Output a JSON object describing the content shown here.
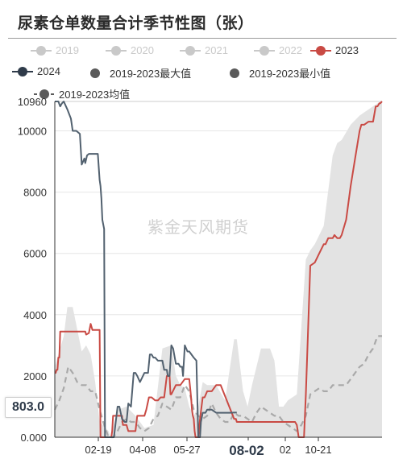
{
  "title": "尿素仓单数量合计季节性图（张）",
  "watermark": "紫金天风期货",
  "legend": [
    {
      "label": "2019",
      "color": "#c9c9c9",
      "style": "circle-line",
      "state": "muted"
    },
    {
      "label": "2020",
      "color": "#c9c9c9",
      "style": "circle-line",
      "state": "muted"
    },
    {
      "label": "2021",
      "color": "#c9c9c9",
      "style": "circle-line",
      "state": "muted"
    },
    {
      "label": "2022",
      "color": "#c9c9c9",
      "style": "circle-line",
      "state": "muted"
    },
    {
      "label": "2023",
      "color": "#c94a44",
      "style": "circle-line",
      "state": "active"
    },
    {
      "label": "2024",
      "color": "#2f3b4a",
      "style": "circle-line",
      "state": "active"
    },
    {
      "label": "2019-2023最大值",
      "color": "#5a5a5a",
      "style": "circle",
      "state": "active"
    },
    {
      "label": "2019-2023最小值",
      "color": "#5a5a5a",
      "style": "circle",
      "state": "active"
    },
    {
      "label": "2019-2023均值",
      "color": "#5a5a5a",
      "style": "circle-dash",
      "state": "active"
    }
  ],
  "y_pointer": "803.0",
  "x_pointer": "08-02",
  "chart_data": {
    "type": "line",
    "title": "尿素仓单数量合计季节性图（张）",
    "ylim": [
      0,
      10960
    ],
    "y_ticks": [
      "0.000",
      "2000",
      "4000",
      "6000",
      "8000",
      "10000",
      "10960"
    ],
    "x_ticks": [
      "02-19",
      "04-08",
      "05-27",
      "08-02",
      "02",
      "10-21"
    ],
    "colors": {
      "y2023": "#c94a44",
      "y2024": "#52616f",
      "band": "#e3e3e3",
      "mean": "#a9a9a9"
    },
    "x_domain": [
      0,
      365
    ],
    "range_band": {
      "name": "2019-2023最大值 / 2019-2023最小值",
      "x": [
        0,
        10,
        14,
        20,
        30,
        35,
        40,
        45,
        50,
        60,
        62,
        70,
        80,
        90,
        100,
        110,
        120,
        130,
        135,
        140,
        145,
        150,
        155,
        160,
        165,
        170,
        180,
        190,
        200,
        203,
        210,
        215,
        220,
        230,
        240,
        245,
        250,
        255,
        260,
        270,
        280,
        285,
        290,
        300,
        310,
        315,
        320,
        330,
        340,
        350,
        360,
        365
      ],
      "max": [
        2300,
        3300,
        4250,
        4250,
        2800,
        3000,
        2700,
        1800,
        500,
        200,
        0,
        900,
        1000,
        700,
        300,
        400,
        2900,
        3000,
        2000,
        1700,
        1600,
        1000,
        700,
        1000,
        1800,
        1700,
        1700,
        1200,
        3200,
        3200,
        1500,
        1000,
        1700,
        2900,
        2900,
        2500,
        1000,
        1000,
        1200,
        1400,
        5800,
        6100,
        6300,
        6900,
        9200,
        9600,
        9700,
        10200,
        10500,
        10700,
        10900,
        10960
      ],
      "min": [
        0,
        0,
        0,
        0,
        0,
        0,
        0,
        0,
        0,
        0,
        0,
        0,
        0,
        0,
        0,
        0,
        0,
        0,
        0,
        0,
        0,
        0,
        0,
        0,
        0,
        0,
        0,
        0,
        0,
        0,
        0,
        0,
        0,
        0,
        0,
        0,
        0,
        0,
        0,
        0,
        0,
        0,
        0,
        0,
        0,
        0,
        0,
        0,
        0,
        0,
        0,
        0
      ]
    },
    "series": [
      {
        "name": "2019-2023均值",
        "style": "dashed",
        "x": [
          0,
          5,
          10,
          15,
          20,
          25,
          30,
          35,
          40,
          45,
          50,
          55,
          60,
          65,
          70,
          75,
          80,
          85,
          90,
          95,
          100,
          105,
          110,
          115,
          120,
          125,
          130,
          135,
          140,
          145,
          150,
          155,
          160,
          165,
          170,
          175,
          180,
          185,
          190,
          195,
          200,
          205,
          210,
          215,
          220,
          225,
          230,
          235,
          240,
          245,
          250,
          255,
          260,
          265,
          270,
          275,
          280,
          285,
          290,
          295,
          300,
          305,
          310,
          315,
          320,
          325,
          330,
          335,
          340,
          345,
          350,
          355,
          360,
          365
        ],
        "values": [
          900,
          1200,
          1600,
          2300,
          2100,
          1800,
          1700,
          1700,
          1500,
          1500,
          900,
          400,
          0,
          0,
          200,
          500,
          600,
          500,
          500,
          300,
          200,
          300,
          600,
          700,
          1100,
          1000,
          900,
          1300,
          1300,
          1700,
          1500,
          900,
          700,
          600,
          700,
          1100,
          800,
          600,
          500,
          500,
          800,
          700,
          700,
          600,
          500,
          800,
          1000,
          900,
          800,
          700,
          700,
          500,
          400,
          300,
          200,
          400,
          700,
          1400,
          1500,
          1600,
          1500,
          1500,
          1700,
          1700,
          1700,
          1700,
          1900,
          2100,
          2300,
          2400,
          2700,
          2900,
          3300,
          3300
        ]
      },
      {
        "name": "2023",
        "style": "solid",
        "x": [
          0,
          1,
          2,
          3,
          4,
          5,
          6,
          30,
          34,
          35,
          38,
          40,
          41,
          42,
          50,
          51,
          55,
          60,
          62,
          63,
          64,
          65,
          66,
          75,
          76,
          80,
          82,
          90,
          92,
          100,
          102,
          105,
          108,
          112,
          115,
          118,
          122,
          125,
          128,
          129,
          130,
          135,
          140,
          145,
          150,
          151,
          152,
          153,
          154,
          155,
          156,
          157,
          158,
          160,
          162,
          165,
          167,
          170,
          175,
          180,
          182,
          185,
          200,
          202,
          203,
          205,
          220,
          222,
          240,
          242,
          260,
          262,
          265,
          268,
          270,
          272,
          275,
          278,
          280,
          285,
          290,
          295,
          300,
          302,
          305,
          310,
          312,
          315,
          318,
          320,
          325,
          330,
          335,
          340,
          342,
          345,
          350,
          355,
          358,
          360,
          362,
          363,
          365
        ],
        "values": [
          2100,
          2100,
          2200,
          2200,
          2600,
          2600,
          3450,
          3450,
          3450,
          3350,
          3400,
          3700,
          3600,
          3500,
          3500,
          0,
          0,
          0,
          0,
          0,
          200,
          700,
          700,
          700,
          400,
          400,
          200,
          200,
          700,
          700,
          900,
          1300,
          1300,
          1200,
          1200,
          1300,
          1300,
          2000,
          2000,
          1400,
          1400,
          1700,
          1700,
          1900,
          1900,
          1600,
          1300,
          900,
          700,
          600,
          200,
          0,
          0,
          0,
          600,
          1300,
          1300,
          1500,
          1500,
          1700,
          1700,
          1700,
          600,
          600,
          500,
          500,
          500,
          500,
          500,
          500,
          500,
          500,
          500,
          500,
          400,
          0,
          0,
          0,
          1400,
          5600,
          5700,
          6000,
          6300,
          6300,
          6500,
          6500,
          6600,
          6500,
          6500,
          6600,
          7100,
          8200,
          9100,
          10000,
          10200,
          10200,
          10300,
          10300,
          10800,
          10800,
          10900,
          10900,
          10960
        ]
      },
      {
        "name": "2024",
        "style": "solid",
        "x": [
          0,
          4,
          6,
          8,
          10,
          14,
          18,
          20,
          24,
          28,
          30,
          33,
          34,
          36,
          38,
          40,
          45,
          48,
          50,
          51,
          52,
          53,
          55,
          56,
          58,
          60,
          61,
          62,
          63,
          64,
          65,
          66,
          68,
          70,
          72,
          75,
          78,
          80,
          82,
          85,
          88,
          90,
          92,
          95,
          100,
          104,
          106,
          108,
          110,
          112,
          115,
          120,
          122,
          125,
          126,
          128,
          130,
          132,
          135,
          138,
          140,
          142,
          143,
          145,
          148,
          150,
          155,
          158,
          160,
          162,
          163,
          165,
          168,
          170,
          175,
          180,
          185,
          190,
          195,
          200,
          203
        ],
        "values": [
          10960,
          10960,
          10800,
          10900,
          10960,
          10700,
          10400,
          10000,
          10000,
          9900,
          8900,
          9100,
          8950,
          9200,
          9250,
          9250,
          9250,
          9250,
          8400,
          8200,
          7800,
          7100,
          6800,
          0,
          0,
          0,
          0,
          0,
          0,
          0,
          0,
          0,
          500,
          1000,
          1000,
          600,
          500,
          500,
          1100,
          1000,
          2100,
          2100,
          2000,
          1800,
          2100,
          2100,
          2700,
          2700,
          2600,
          2600,
          2500,
          2500,
          2200,
          2200,
          2000,
          2000,
          3000,
          2900,
          2400,
          2400,
          2300,
          2300,
          2000,
          3000,
          2800,
          2800,
          2600,
          2500,
          0,
          0,
          500,
          800,
          800,
          900,
          900,
          800,
          800,
          800,
          800,
          803,
          803
        ]
      }
    ]
  }
}
